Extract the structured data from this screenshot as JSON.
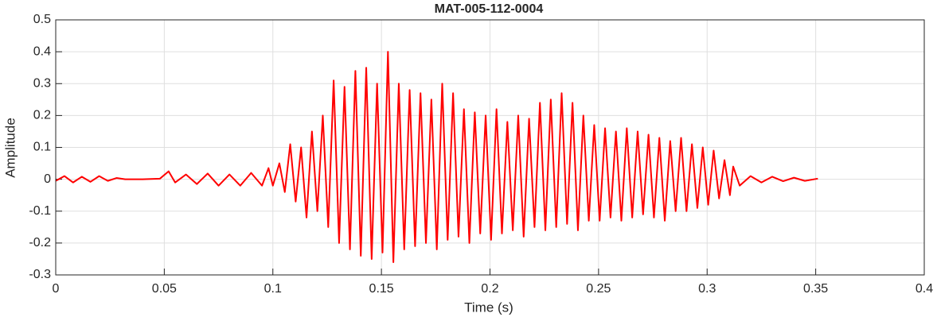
{
  "chart_data": {
    "type": "line",
    "title": "MAT-005-112-0004",
    "xlabel": "Time (s)",
    "ylabel": "Amplitude",
    "xlim": [
      0,
      0.4
    ],
    "xticks": [
      0,
      0.05,
      0.1,
      0.15,
      0.2,
      0.25,
      0.3,
      0.35,
      0.4
    ],
    "ylim": [
      -0.3,
      0.5
    ],
    "yticks": [
      -0.3,
      -0.2,
      -0.1,
      0,
      0.1,
      0.2,
      0.3,
      0.4,
      0.5
    ],
    "grid": true,
    "x": [
      0,
      0.004,
      0.008,
      0.012,
      0.016,
      0.02,
      0.024,
      0.028,
      0.032,
      0.04,
      0.048,
      0.052,
      0.055,
      0.06,
      0.065,
      0.07,
      0.075,
      0.08,
      0.085,
      0.09,
      0.095,
      0.098,
      0.1,
      0.103,
      0.1055,
      0.108,
      0.1105,
      0.113,
      0.1155,
      0.118,
      0.1205,
      0.123,
      0.1255,
      0.128,
      0.1305,
      0.133,
      0.1355,
      0.138,
      0.1405,
      0.143,
      0.1455,
      0.148,
      0.1505,
      0.153,
      0.1555,
      0.158,
      0.1605,
      0.163,
      0.1655,
      0.168,
      0.1705,
      0.173,
      0.1755,
      0.178,
      0.1805,
      0.183,
      0.1855,
      0.188,
      0.1905,
      0.193,
      0.1955,
      0.198,
      0.2005,
      0.203,
      0.2055,
      0.208,
      0.2105,
      0.213,
      0.2155,
      0.218,
      0.2205,
      0.223,
      0.2255,
      0.228,
      0.2305,
      0.233,
      0.2355,
      0.238,
      0.2405,
      0.243,
      0.2455,
      0.248,
      0.2505,
      0.253,
      0.2555,
      0.258,
      0.2605,
      0.263,
      0.2655,
      0.268,
      0.2705,
      0.273,
      0.2755,
      0.278,
      0.2805,
      0.283,
      0.2855,
      0.288,
      0.2905,
      0.293,
      0.2955,
      0.298,
      0.3005,
      0.303,
      0.3055,
      0.308,
      0.3105,
      0.312,
      0.315,
      0.32,
      0.325,
      0.33,
      0.335,
      0.34,
      0.345,
      0.351
    ],
    "series": [
      {
        "name": "signal",
        "color": "#ff0000",
        "values": [
          -0.005,
          0.01,
          -0.01,
          0.008,
          -0.008,
          0.01,
          -0.005,
          0.004,
          0,
          0,
          0.002,
          0.025,
          -0.01,
          0.015,
          -0.015,
          0.018,
          -0.02,
          0.015,
          -0.02,
          0.02,
          -0.02,
          0.035,
          -0.02,
          0.05,
          -0.04,
          0.11,
          -0.07,
          0.1,
          -0.12,
          0.15,
          -0.1,
          0.2,
          -0.15,
          0.31,
          -0.2,
          0.29,
          -0.22,
          0.34,
          -0.24,
          0.35,
          -0.25,
          0.3,
          -0.23,
          0.4,
          -0.26,
          0.3,
          -0.22,
          0.28,
          -0.21,
          0.27,
          -0.2,
          0.25,
          -0.22,
          0.3,
          -0.19,
          0.27,
          -0.18,
          0.22,
          -0.2,
          0.21,
          -0.17,
          0.2,
          -0.19,
          0.22,
          -0.17,
          0.18,
          -0.16,
          0.2,
          -0.18,
          0.19,
          -0.15,
          0.24,
          -0.16,
          0.25,
          -0.15,
          0.27,
          -0.14,
          0.24,
          -0.16,
          0.2,
          -0.13,
          0.17,
          -0.13,
          0.16,
          -0.12,
          0.15,
          -0.13,
          0.16,
          -0.12,
          0.15,
          -0.11,
          0.14,
          -0.12,
          0.13,
          -0.13,
          0.12,
          -0.1,
          0.13,
          -0.1,
          0.11,
          -0.09,
          0.1,
          -0.08,
          0.09,
          -0.06,
          0.06,
          -0.05,
          0.04,
          -0.02,
          0.01,
          -0.01,
          0.008,
          -0.006,
          0.005,
          -0.005,
          0.002
        ]
      }
    ]
  }
}
